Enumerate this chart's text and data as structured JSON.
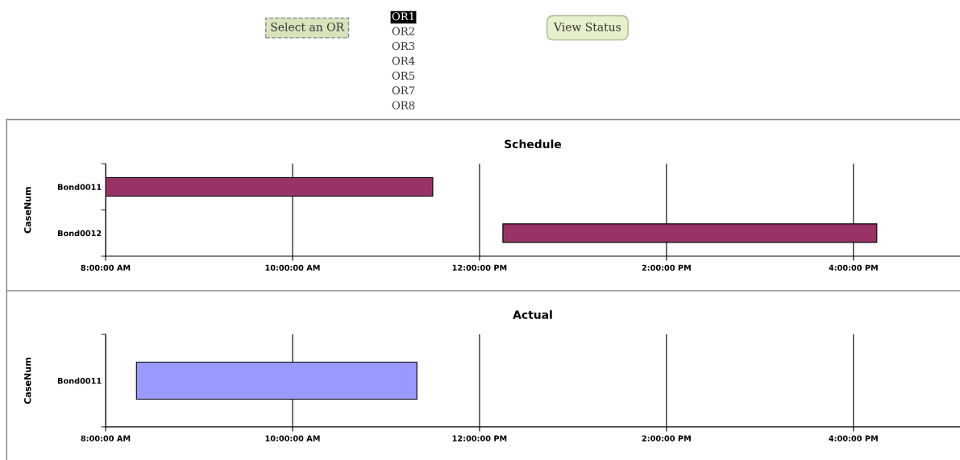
{
  "chart_data": [
    {
      "type": "other",
      "annotations": [
        "Select an OR",
        "OR1",
        "OR2",
        "OR3",
        "OR4",
        "OR5",
        "OR7",
        "OR8",
        "View Status"
      ]
    },
    {
      "type": "bar",
      "orientation": "horizontal",
      "title": "Schedule",
      "ylabel": "CaseNum",
      "categories": [
        "Bond0011",
        "Bond0012"
      ],
      "base": [
        8,
        12.25
      ],
      "values": [
        3.5,
        4
      ],
      "color": "#993366",
      "xlim": [
        8,
        17.14
      ],
      "xticks": [
        {
          "value": 8,
          "label": "8:00:00 AM"
        },
        {
          "value": 10,
          "label": "10:00:00 AM"
        },
        {
          "value": 12,
          "label": "12:00:00 PM"
        },
        {
          "value": 14,
          "label": "2:00:00 PM"
        },
        {
          "value": 16,
          "label": "4:00:00 PM"
        }
      ],
      "grid": "x",
      "legend": false
    },
    {
      "type": "bar",
      "orientation": "horizontal",
      "title": "Actual",
      "ylabel": "CaseNum",
      "categories": [
        "Bond0011"
      ],
      "base": [
        8.33
      ],
      "values": [
        3
      ],
      "color": "#9999ff",
      "xlim": [
        8,
        17.14
      ],
      "xticks": [
        {
          "value": 8,
          "label": "8:00:00 AM"
        },
        {
          "value": 10,
          "label": "10:00:00 AM"
        },
        {
          "value": 12,
          "label": "12:00:00 PM"
        },
        {
          "value": 14,
          "label": "2:00:00 PM"
        },
        {
          "value": 16,
          "label": "4:00:00 PM"
        }
      ],
      "grid": "x",
      "legend": false
    }
  ]
}
